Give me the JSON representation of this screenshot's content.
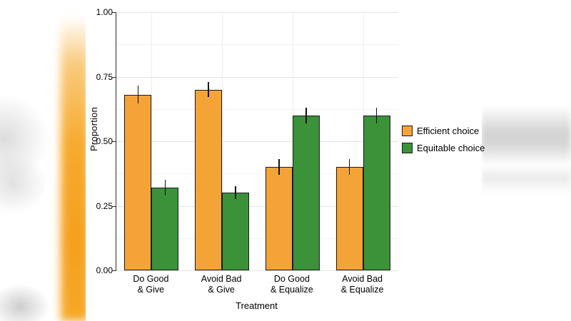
{
  "background": {
    "left_blur_accent": "#f5a01e",
    "right_stripe_color": "#a8a8a8"
  },
  "chart_data": {
    "type": "bar",
    "title": "",
    "categories": [
      "Do Good\n& Give",
      "Avoid Bad\n& Give",
      "Do Good\n& Equalize",
      "Avoid Bad\n& Equalize"
    ],
    "series": [
      {
        "name": "Efficient choice",
        "color": "#F4A436",
        "values": [
          0.68,
          0.7,
          0.4,
          0.4
        ],
        "errors": [
          0.035,
          0.03,
          0.03,
          0.03
        ]
      },
      {
        "name": "Equitable choice",
        "color": "#3B9239",
        "values": [
          0.32,
          0.3,
          0.6,
          0.6
        ],
        "errors": [
          0.03,
          0.025,
          0.03,
          0.03
        ]
      }
    ],
    "xlabel": "Treatment",
    "ylabel": "Proportion",
    "ylim": [
      0,
      1
    ],
    "yticks": [
      0,
      0.25,
      0.5,
      0.75,
      1
    ],
    "ytick_labels": [
      "0.00",
      "0.25",
      "0.50",
      "0.75",
      "1.00"
    ],
    "grid": true,
    "legend_position": "right"
  }
}
